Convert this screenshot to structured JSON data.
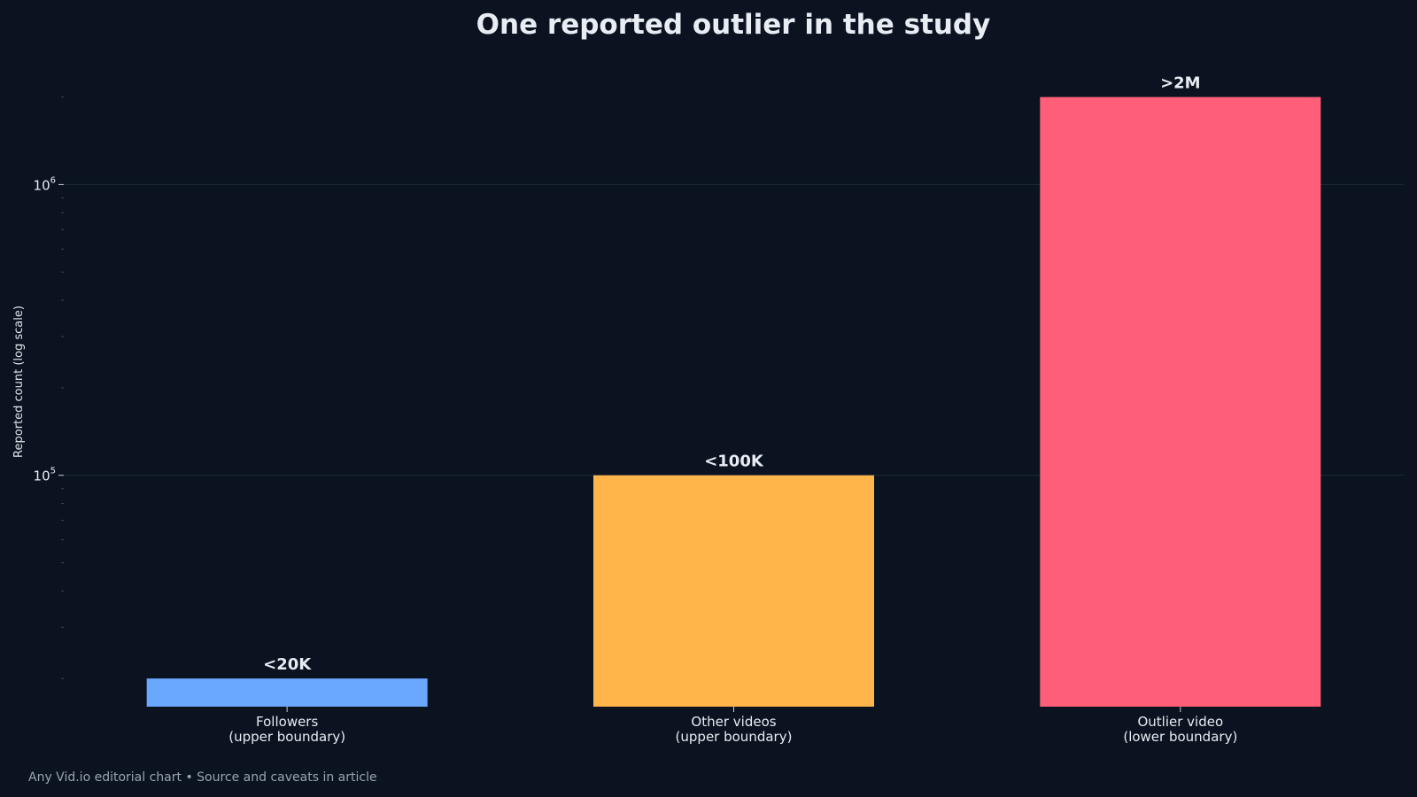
{
  "chart_data": {
    "type": "bar",
    "title": "One reported outlier in the study",
    "ylabel": "Reported count (log scale)",
    "yscale": "log",
    "ylim": [
      16000,
      2200000
    ],
    "grid": true,
    "yticks": [
      {
        "value": 100000,
        "base": "10",
        "exp": "5"
      },
      {
        "value": 1000000,
        "base": "10",
        "exp": "6"
      }
    ],
    "categories": [
      [
        "Followers",
        "(upper boundary)"
      ],
      [
        "Other videos",
        "(upper boundary)"
      ],
      [
        "Outlier video",
        "(lower boundary)"
      ]
    ],
    "values": [
      20000,
      100000,
      2000000
    ],
    "value_labels": [
      "<20K",
      "<100K",
      ">2M"
    ],
    "colors": [
      "#6aa8ff",
      "#ffb54a",
      "#ff5e78"
    ]
  },
  "footer": "Any Vid.io editorial chart • Source and caveats in article"
}
